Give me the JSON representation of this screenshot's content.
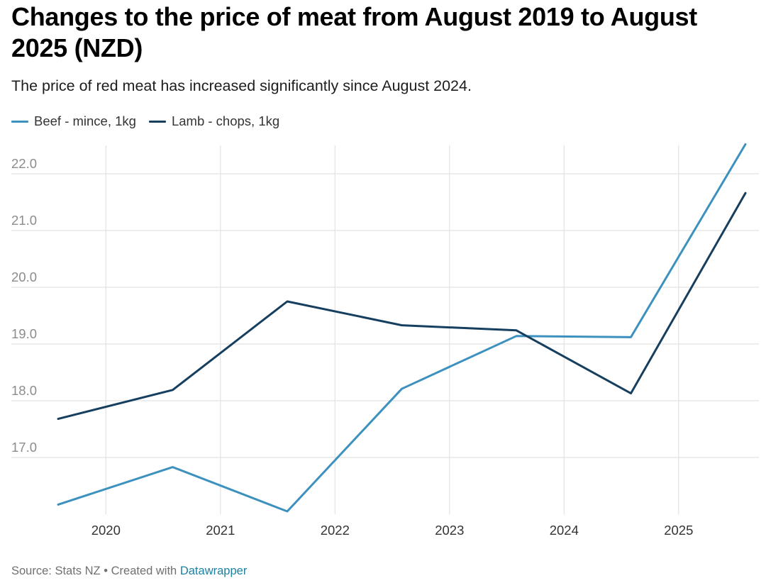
{
  "header": {
    "title": "Changes to the price of meat from August 2019 to August 2025 (NZD)",
    "subtitle": "The price of red meat has increased significantly since August 2024."
  },
  "footer": {
    "source": "Source: Stats NZ",
    "separator": "•",
    "created_with": "Created with",
    "tool_link": "Datawrapper"
  },
  "chart_data": {
    "type": "line",
    "x": [
      "2019-08",
      "2020-08",
      "2021-08",
      "2022-08",
      "2023-08",
      "2024-08",
      "2025-08"
    ],
    "xticks": [
      "2020",
      "2021",
      "2022",
      "2023",
      "2024",
      "2025"
    ],
    "yticks": [
      "17.0",
      "18.0",
      "19.0",
      "20.0",
      "21.0",
      "22.0"
    ],
    "ylim": [
      16.0,
      22.5
    ],
    "grid": true,
    "legend_position": "top-left",
    "series": [
      {
        "name": "Beef - mince, 1kg",
        "color": "#3d91bf",
        "values": [
          16.17,
          16.83,
          16.05,
          18.21,
          19.14,
          19.12,
          22.52
        ]
      },
      {
        "name": "Lamb - chops, 1kg",
        "color": "#163f5f",
        "values": [
          17.68,
          18.19,
          19.75,
          19.33,
          19.24,
          18.13,
          21.66
        ]
      }
    ]
  }
}
